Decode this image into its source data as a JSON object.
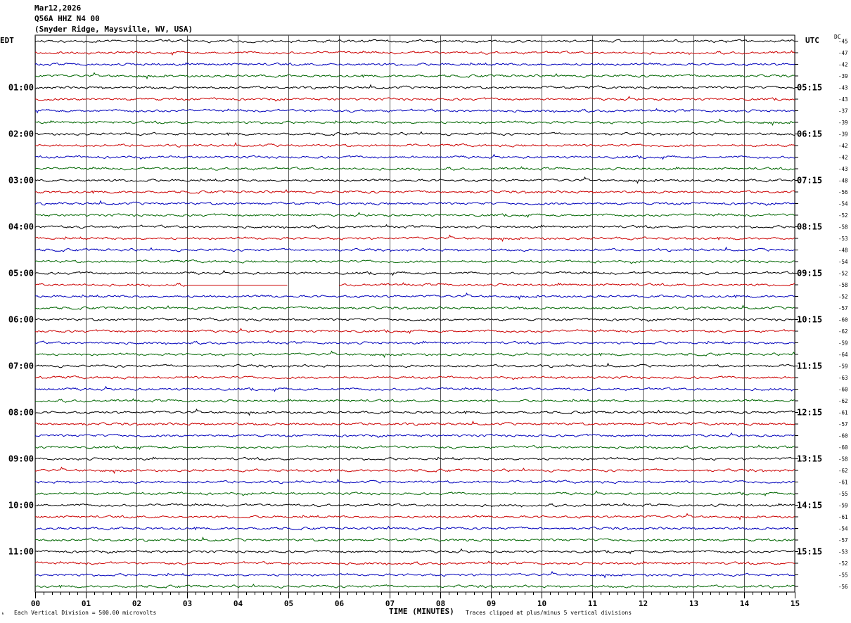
{
  "header": {
    "date": "Mar12,2026",
    "station": "Q56A HHZ N4 00",
    "location": "(Snyder Ridge, Maysville, WV, USA)"
  },
  "left_tz": "EDT",
  "right_tz": "UTC",
  "dc_label": "DC",
  "footer": {
    "scale": "Each Vertical Division =  500.00 microvolts",
    "xlabel": "TIME (MINUTES)",
    "clip_note": "Traces clipped at plus/minus 5 vertical divisions"
  },
  "colors": {
    "black": "#000000",
    "red": "#cc0000",
    "blue": "#0000bb",
    "green": "#006600",
    "grid": "#555555"
  },
  "chart_data": {
    "type": "line",
    "subtype": "helicorder",
    "xlabel": "TIME (MINUTES)",
    "x_ticks": [
      "00",
      "01",
      "02",
      "03",
      "04",
      "05",
      "06",
      "07",
      "08",
      "09",
      "10",
      "11",
      "12",
      "13",
      "14",
      "15"
    ],
    "xlim": [
      0,
      15
    ],
    "left_hour_labels": [
      "01:00",
      "02:00",
      "03:00",
      "04:00",
      "05:00",
      "06:00",
      "07:00",
      "08:00",
      "09:00",
      "10:00",
      "11:00"
    ],
    "right_hour_labels": [
      "05:15",
      "06:15",
      "07:15",
      "08:15",
      "09:15",
      "10:15",
      "11:15",
      "12:15",
      "13:15",
      "14:15",
      "15:15"
    ],
    "trace_colors": [
      "black",
      "red",
      "blue",
      "green"
    ],
    "dc_offsets": [
      -45,
      -47,
      -42,
      -39,
      -43,
      -43,
      -37,
      -39,
      -39,
      -42,
      -42,
      -43,
      -48,
      -56,
      -54,
      -52,
      -58,
      -53,
      -48,
      -54,
      -52,
      -58,
      -52,
      -57,
      -60,
      -62,
      -59,
      -64,
      -59,
      -63,
      -60,
      -62,
      -61,
      -57,
      -60,
      -60,
      -58,
      -62,
      -61,
      -55,
      -59,
      -61,
      -54,
      -57,
      -53,
      -52,
      -55,
      -56
    ],
    "data_gap": {
      "trace": 21,
      "flat_from_min": 3.0,
      "flat_to_min": 5.0,
      "missing_from_min": 5.0,
      "missing_to_min": 6.0
    }
  }
}
